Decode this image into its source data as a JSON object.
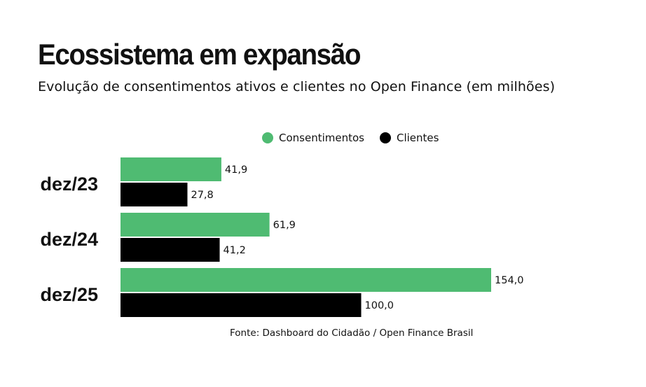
{
  "title": "Ecossistema em expansão",
  "subtitle": "Evolução de consentimentos ativos e clientes no Open Finance (em milhões)",
  "source": "Fonte: Dashboard do Cidadão / Open Finance Brasil",
  "colors": {
    "consentimentos": "#4fbb72",
    "clientes": "#000000",
    "text": "#111111"
  },
  "chart_data": {
    "type": "bar",
    "orientation": "horizontal",
    "categories": [
      "dez/23",
      "dez/24",
      "dez/25"
    ],
    "series": [
      {
        "name": "Consentimentos",
        "values": [
          41.9,
          61.9,
          154.0
        ],
        "labels": [
          "41,9",
          "61,9",
          "154,0"
        ]
      },
      {
        "name": "Clientes",
        "values": [
          27.8,
          41.2,
          100.0
        ],
        "labels": [
          "27,8",
          "41,2",
          "100,0"
        ]
      }
    ],
    "title": "Ecossistema em expansão",
    "subtitle": "Evolução de consentimentos ativos e clientes no Open Finance (em milhões)",
    "xlabel": "",
    "ylabel": "",
    "xlim": [
      0,
      154
    ],
    "grid": false,
    "legend": "top-center",
    "units": "milhões"
  }
}
